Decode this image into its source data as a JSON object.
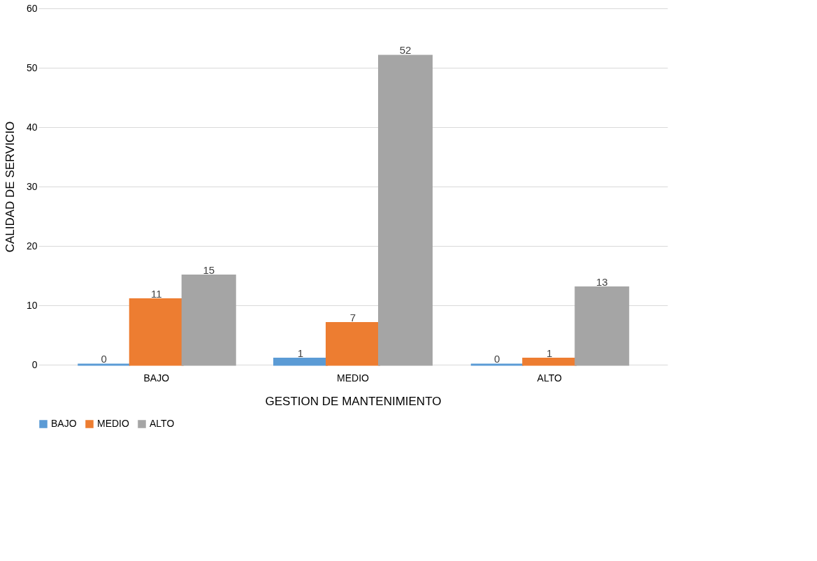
{
  "chart_data": {
    "type": "bar",
    "xlabel": "GESTION DE MANTENIMIENTO",
    "ylabel": "CALIDAD DE SERVICIO",
    "categories": [
      "BAJO",
      "MEDIO",
      "ALTO"
    ],
    "series": [
      {
        "name": "BAJO",
        "color": "#5b9bd5",
        "values": [
          0,
          1,
          0
        ]
      },
      {
        "name": "MEDIO",
        "color": "#ed7d31",
        "values": [
          11,
          7,
          1
        ]
      },
      {
        "name": "ALTO",
        "color": "#a5a5a5",
        "values": [
          15,
          52,
          13
        ]
      }
    ],
    "ylim": [
      0,
      60
    ],
    "yticks": [
      0,
      10,
      20,
      30,
      40,
      50,
      60
    ],
    "grid": "y",
    "legend": "bottom",
    "data_labels": true
  }
}
